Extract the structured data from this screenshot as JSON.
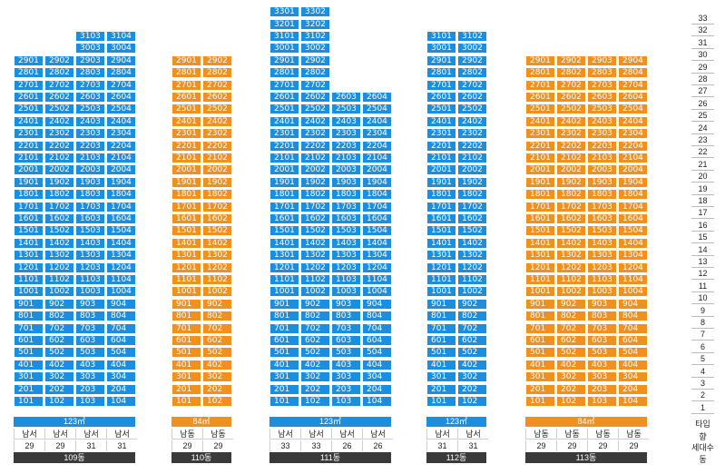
{
  "buildings": [
    {
      "name": "109동",
      "type": "123㎡",
      "color": "#1b8ee0",
      "directions": [
        "남서",
        "남서",
        "남서",
        "남서"
      ],
      "floors": [
        "29",
        "29",
        "31",
        "31"
      ],
      "top_floor": [
        29,
        29,
        31,
        31
      ]
    },
    {
      "name": "110동",
      "type": "84㎡",
      "color": "#f0901f",
      "directions": [
        "남동",
        "남동"
      ],
      "floors": [
        "29",
        "29"
      ],
      "top_floor": [
        29,
        29
      ]
    },
    {
      "name": "111동",
      "type": "123㎡",
      "color": "#1b8ee0",
      "directions": [
        "남서",
        "남서",
        "남서",
        "남서"
      ],
      "floors": [
        "33",
        "33",
        "26",
        "26"
      ],
      "top_floor": [
        33,
        33,
        26,
        26
      ]
    },
    {
      "name": "112동",
      "type": "123㎡",
      "color": "#1b8ee0",
      "directions": [
        "남서",
        "남서"
      ],
      "floors": [
        "31",
        "31"
      ],
      "top_floor": [
        31,
        31
      ]
    },
    {
      "name": "113동",
      "type": "84㎡",
      "color": "#f0901f",
      "directions": [
        "남동",
        "남동",
        "남동",
        "남동"
      ],
      "floors": [
        "29",
        "29",
        "29",
        "29"
      ],
      "top_floor": [
        29,
        29,
        29,
        29
      ]
    }
  ],
  "legend": {
    "floor_numbers": [
      "33",
      "32",
      "31",
      "30",
      "29",
      "28",
      "27",
      "26",
      "25",
      "24",
      "23",
      "22",
      "21",
      "20",
      "19",
      "18",
      "17",
      "16",
      "15",
      "14",
      "13",
      "12",
      "11",
      "10",
      "9",
      "8",
      "7",
      "6",
      "5",
      "4",
      "3",
      "2",
      "1"
    ],
    "type_label": "타입",
    "direction_label": "향",
    "households_label": "세대수",
    "building_label": "동"
  }
}
